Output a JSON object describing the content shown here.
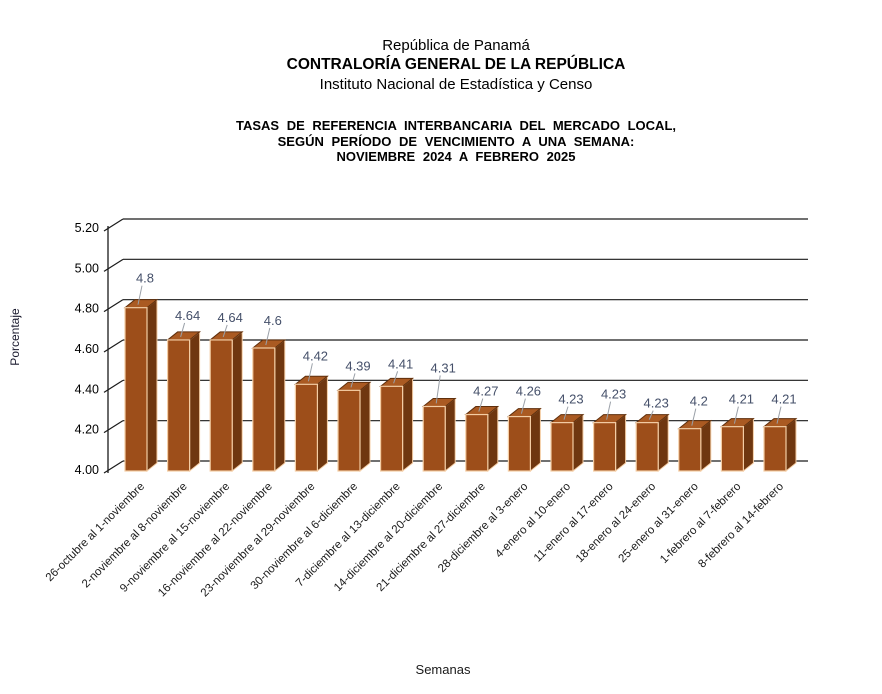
{
  "header": {
    "line1": "República de Panamá",
    "line2": "CONTRALORÍA GENERAL DE LA REPÚBLICA",
    "line3": "Instituto Nacional de Estadística y Censo",
    "title_line1": "TASAS DE REFERENCIA INTERBANCARIA DEL MERCADO LOCAL,",
    "title_line2": "SEGÚN PERÍODO DE VENCIMIENTO A UNA SEMANA:",
    "title_line3": "NOVIEMBRE 2024 A FEBRERO 2025"
  },
  "chart_data": {
    "type": "bar",
    "style": "3d-column",
    "title": "TASAS DE REFERENCIA INTERBANCARIA DEL MERCADO LOCAL, SEGÚN PERÍODO DE VENCIMIENTO A UNA SEMANA: NOVIEMBRE 2024 A FEBRERO 2025",
    "categories": [
      "26-octubre al 1-noviembre",
      "2-noviembre al 8-noviembre",
      "9-noviembre al 15-noviembre",
      "16-noviembre al 22-noviembre",
      "23-noviembre al 29-noviembre",
      "30-noviembre al 6-diciembre",
      "7-diciembre al 13-diciembre",
      "14-diciembre al 20-diciembre",
      "21-diciembre al 27-diciembre",
      "28-diciembre al 3-enero",
      "4-enero al 10-enero",
      "11-enero al 17-enero",
      "18-enero al 24-enero",
      "25-enero al 31-enero",
      "1-febrero al 7-febrero",
      "8-febrero al 14-febrero"
    ],
    "values": [
      4.8,
      4.64,
      4.64,
      4.6,
      4.42,
      4.39,
      4.41,
      4.31,
      4.27,
      4.26,
      4.23,
      4.23,
      4.23,
      4.2,
      4.21,
      4.21
    ],
    "value_labels": [
      "4.8",
      "4.64",
      "4.64",
      "4.6",
      "4.42",
      "4.39",
      "4.41",
      "4.31",
      "4.27",
      "4.26",
      "4.23",
      "4.23",
      "4.23",
      "4.2",
      "4.21",
      "4.21"
    ],
    "xlabel": "Semanas",
    "ylabel": "Porcentaje",
    "ylim": [
      4.0,
      5.2
    ],
    "ytick_step": 0.2,
    "yticks": [
      "4.00",
      "4.20",
      "4.40",
      "4.60",
      "4.80",
      "5.00",
      "5.20"
    ],
    "grid": true,
    "legend": false,
    "colors": {
      "bar_front": "#9d4e1a",
      "bar_side": "#6f3710",
      "bar_top": "#aa5a22",
      "bar_top_edge": "#5f2f0c",
      "bar_outline": "#f4cda4",
      "gridline": "#1a1a1a",
      "axis": "#1a1a1a",
      "tick_label": "#000000",
      "data_label": "#45506a",
      "leader_line": "#9aa0a8",
      "category_label": "#1a1a1a"
    }
  }
}
